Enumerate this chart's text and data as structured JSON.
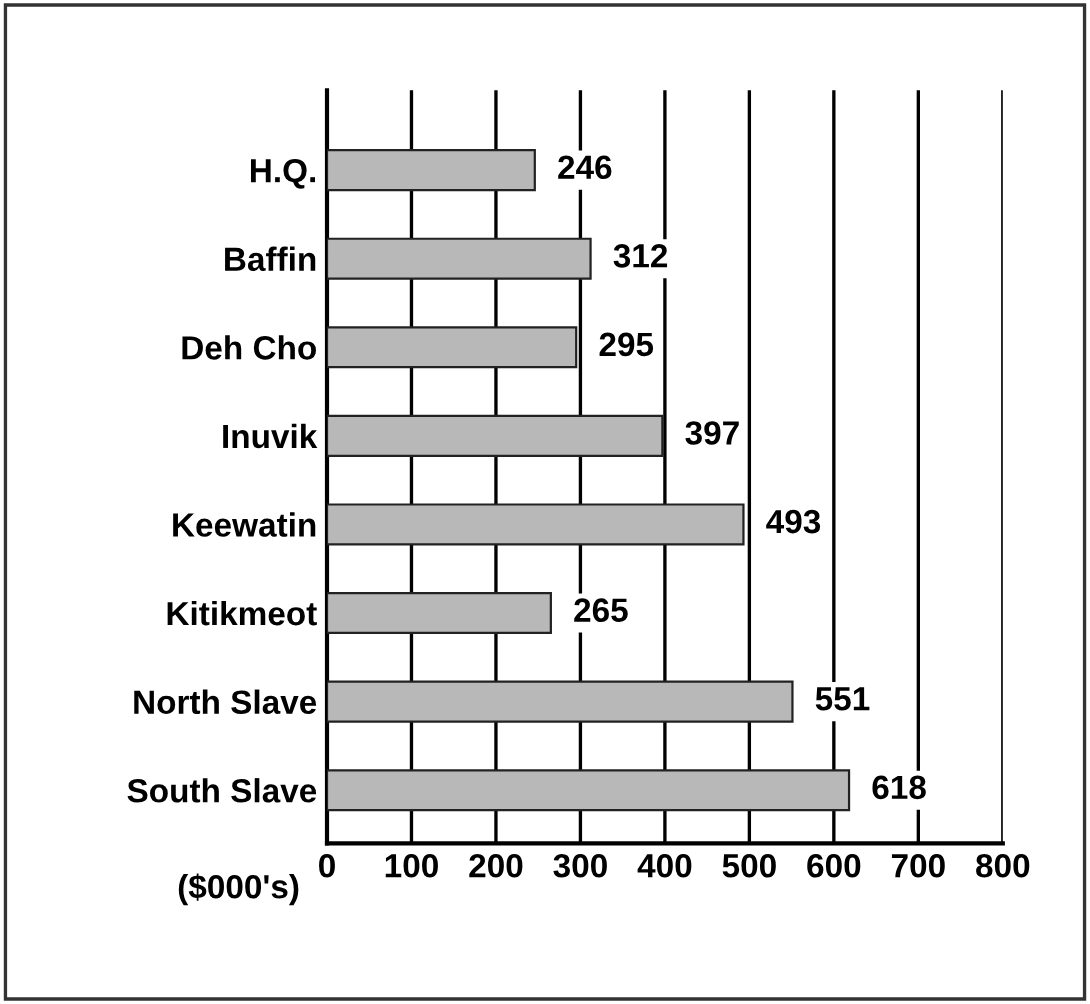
{
  "chart_data": {
    "type": "bar",
    "orientation": "horizontal",
    "xlabel": "($000's)",
    "categories": [
      "H.Q.",
      "Baffin",
      "Deh Cho",
      "Inuvik",
      "Keewatin",
      "Kitikmeot",
      "North Slave",
      "South Slave"
    ],
    "values": [
      246,
      312,
      295,
      397,
      493,
      265,
      551,
      618
    ],
    "color": "#b8b8b8",
    "xlim": [
      0,
      800
    ],
    "xticks": [
      0,
      100,
      200,
      300,
      400,
      500,
      600,
      700,
      800
    ],
    "grid": "x",
    "data_labels": true
  }
}
